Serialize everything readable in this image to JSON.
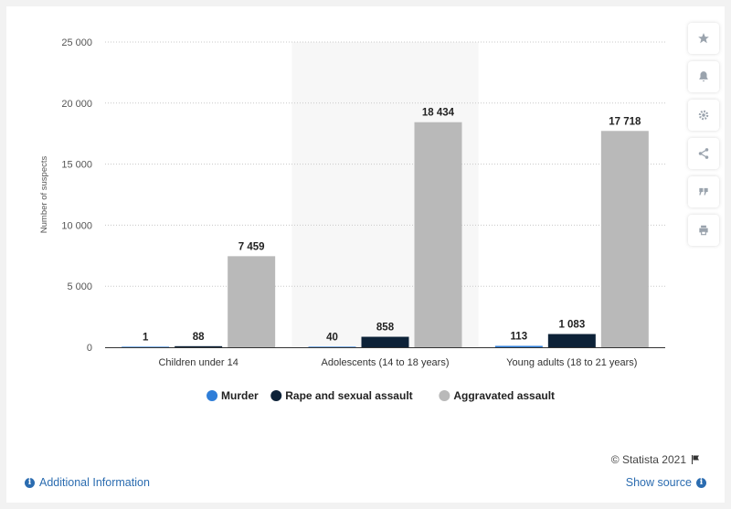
{
  "chart_data": {
    "type": "bar",
    "categories": [
      "Children under 14",
      "Adolescents (14 to 18 years)",
      "Young adults (18 to 21 years)"
    ],
    "series": [
      {
        "name": "Murder",
        "color": "#2f7ed8",
        "values": [
          1,
          40,
          113
        ],
        "labels": [
          "1",
          "40",
          "113"
        ]
      },
      {
        "name": "Rape and sexual assault",
        "color": "#0d2238",
        "values": [
          88,
          858,
          1083
        ],
        "labels": [
          "88",
          "858",
          "1 083"
        ]
      },
      {
        "name": "Aggravated assault",
        "color": "#b9b9b9",
        "values": [
          7459,
          18434,
          17718
        ],
        "labels": [
          "7 459",
          "18 434",
          "17 718"
        ]
      }
    ],
    "ylabel": "Number of suspects",
    "xlabel": "",
    "ylim": [
      0,
      25000
    ],
    "yticks": [
      0,
      5000,
      10000,
      15000,
      20000,
      25000
    ],
    "ytick_labels": [
      "0",
      "5 000",
      "10 000",
      "15 000",
      "20 000",
      "25 000"
    ],
    "highlighted_category": 1,
    "grid": true,
    "legend_position": "bottom-center"
  },
  "toolbar": {
    "icons": [
      "star-icon",
      "bell-icon",
      "gear-icon",
      "share-icon",
      "quote-icon",
      "print-icon"
    ]
  },
  "footer": {
    "copyright": "© Statista 2021",
    "additional_info": "Additional Information",
    "show_source": "Show source"
  }
}
